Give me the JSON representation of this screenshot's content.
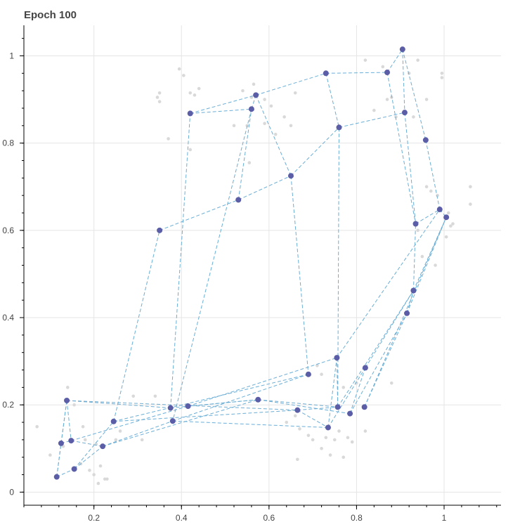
{
  "chart_data": {
    "type": "scatter",
    "title": "Epoch 100",
    "xlabel": "",
    "ylabel": "",
    "xlim": [
      0.04,
      1.13
    ],
    "ylim": [
      -0.03,
      1.07
    ],
    "grid": true,
    "x_ticks": [
      0.2,
      0.4,
      0.6,
      0.8,
      1.0
    ],
    "x_tick_labels": [
      "0.2",
      "0.4",
      "0.6",
      "0.8",
      "1"
    ],
    "y_ticks": [
      0,
      0.2,
      0.4,
      0.6,
      0.8,
      1.0
    ],
    "y_tick_labels": [
      "0",
      "0.2",
      "0.4",
      "0.6",
      "0.8",
      "1"
    ],
    "colors": {
      "nodes": "#5b5ea6",
      "edges": "#6aaed6",
      "background_points": "#d9d9d9"
    },
    "background_points": [
      [
        0.07,
        0.15
      ],
      [
        0.1,
        0.085
      ],
      [
        0.13,
        0.105
      ],
      [
        0.14,
        0.24
      ],
      [
        0.155,
        0.2
      ],
      [
        0.17,
        0.065
      ],
      [
        0.175,
        0.15
      ],
      [
        0.18,
        0.12
      ],
      [
        0.19,
        0.05
      ],
      [
        0.2,
        0.04
      ],
      [
        0.205,
        0.11
      ],
      [
        0.21,
        0.02
      ],
      [
        0.215,
        0.06
      ],
      [
        0.225,
        0.03
      ],
      [
        0.23,
        0.03
      ],
      [
        0.25,
        0.12
      ],
      [
        0.26,
        0.14
      ],
      [
        0.29,
        0.22
      ],
      [
        0.31,
        0.12
      ],
      [
        0.34,
        0.22
      ],
      [
        0.345,
        0.905
      ],
      [
        0.35,
        0.915
      ],
      [
        0.35,
        0.895
      ],
      [
        0.37,
        0.81
      ],
      [
        0.395,
        0.97
      ],
      [
        0.405,
        0.955
      ],
      [
        0.42,
        0.785
      ],
      [
        0.42,
        0.915
      ],
      [
        0.43,
        0.91
      ],
      [
        0.44,
        0.925
      ],
      [
        0.52,
        0.84
      ],
      [
        0.54,
        0.92
      ],
      [
        0.55,
        0.84
      ],
      [
        0.555,
        0.755
      ],
      [
        0.56,
        0.905
      ],
      [
        0.565,
        0.935
      ],
      [
        0.59,
        0.845
      ],
      [
        0.59,
        0.9
      ],
      [
        0.605,
        0.885
      ],
      [
        0.615,
        0.82
      ],
      [
        0.635,
        0.86
      ],
      [
        0.65,
        0.84
      ],
      [
        0.66,
        0.915
      ],
      [
        0.64,
        0.16
      ],
      [
        0.66,
        0.175
      ],
      [
        0.665,
        0.075
      ],
      [
        0.67,
        0.145
      ],
      [
        0.69,
        0.13
      ],
      [
        0.7,
        0.12
      ],
      [
        0.71,
        0.29
      ],
      [
        0.72,
        0.27
      ],
      [
        0.72,
        0.1
      ],
      [
        0.73,
        0.125
      ],
      [
        0.74,
        0.085
      ],
      [
        0.75,
        0.12
      ],
      [
        0.76,
        0.14
      ],
      [
        0.77,
        0.08
      ],
      [
        0.77,
        0.24
      ],
      [
        0.78,
        0.125
      ],
      [
        0.79,
        0.115
      ],
      [
        0.8,
        0.25
      ],
      [
        0.82,
        0.99
      ],
      [
        0.82,
        0.14
      ],
      [
        0.84,
        0.875
      ],
      [
        0.86,
        0.975
      ],
      [
        0.87,
        0.9
      ],
      [
        0.88,
        0.905
      ],
      [
        0.88,
        0.25
      ],
      [
        0.89,
        0.86
      ],
      [
        0.92,
        0.96
      ],
      [
        0.93,
        0.86
      ],
      [
        0.94,
        0.99
      ],
      [
        0.94,
        0.6
      ],
      [
        0.95,
        0.54
      ],
      [
        0.96,
        0.7
      ],
      [
        0.96,
        0.9
      ],
      [
        0.97,
        0.69
      ],
      [
        0.98,
        0.52
      ],
      [
        0.985,
        0.68
      ],
      [
        0.995,
        0.96
      ],
      [
        0.995,
        0.95
      ],
      [
        1.005,
        0.585
      ],
      [
        1.01,
        0.64
      ],
      [
        1.015,
        0.61
      ],
      [
        1.02,
        0.615
      ],
      [
        1.06,
        0.66
      ],
      [
        1.06,
        0.7
      ]
    ],
    "nodes": [
      [
        0.115,
        0.035
      ],
      [
        0.125,
        0.112
      ],
      [
        0.138,
        0.21
      ],
      [
        0.148,
        0.118
      ],
      [
        0.155,
        0.053
      ],
      [
        0.22,
        0.105
      ],
      [
        0.245,
        0.162
      ],
      [
        0.35,
        0.6
      ],
      [
        0.375,
        0.193
      ],
      [
        0.38,
        0.163
      ],
      [
        0.415,
        0.197
      ],
      [
        0.42,
        0.868
      ],
      [
        0.53,
        0.67
      ],
      [
        0.56,
        0.878
      ],
      [
        0.57,
        0.91
      ],
      [
        0.575,
        0.212
      ],
      [
        0.65,
        0.725
      ],
      [
        0.665,
        0.188
      ],
      [
        0.69,
        0.27
      ],
      [
        0.73,
        0.96
      ],
      [
        0.735,
        0.148
      ],
      [
        0.755,
        0.308
      ],
      [
        0.757,
        0.195
      ],
      [
        0.76,
        0.836
      ],
      [
        0.785,
        0.18
      ],
      [
        0.818,
        0.195
      ],
      [
        0.82,
        0.285
      ],
      [
        0.87,
        0.962
      ],
      [
        0.905,
        1.015
      ],
      [
        0.91,
        0.87
      ],
      [
        0.915,
        0.41
      ],
      [
        0.93,
        0.462
      ],
      [
        0.935,
        0.615
      ],
      [
        0.958,
        0.807
      ],
      [
        0.99,
        0.648
      ],
      [
        1.005,
        0.63
      ]
    ],
    "edges": [
      [
        0,
        1
      ],
      [
        0,
        2
      ],
      [
        0,
        4
      ],
      [
        1,
        3
      ],
      [
        2,
        3
      ],
      [
        1,
        2
      ],
      [
        2,
        8
      ],
      [
        2,
        17
      ],
      [
        3,
        5
      ],
      [
        3,
        10
      ],
      [
        4,
        5
      ],
      [
        4,
        6
      ],
      [
        5,
        9
      ],
      [
        5,
        15
      ],
      [
        6,
        7
      ],
      [
        6,
        18
      ],
      [
        6,
        17
      ],
      [
        7,
        12
      ],
      [
        8,
        11
      ],
      [
        8,
        15
      ],
      [
        9,
        20
      ],
      [
        9,
        18
      ],
      [
        10,
        21
      ],
      [
        10,
        15
      ],
      [
        11,
        13
      ],
      [
        11,
        14
      ],
      [
        12,
        13
      ],
      [
        12,
        16
      ],
      [
        13,
        14
      ],
      [
        13,
        9
      ],
      [
        14,
        19
      ],
      [
        14,
        16
      ],
      [
        15,
        22
      ],
      [
        15,
        24
      ],
      [
        16,
        18
      ],
      [
        16,
        23
      ],
      [
        17,
        22
      ],
      [
        17,
        20
      ],
      [
        19,
        27
      ],
      [
        19,
        23
      ],
      [
        20,
        26
      ],
      [
        20,
        21
      ],
      [
        21,
        22
      ],
      [
        21,
        34
      ],
      [
        22,
        23
      ],
      [
        22,
        31
      ],
      [
        23,
        29
      ],
      [
        24,
        26
      ],
      [
        24,
        30
      ],
      [
        25,
        30
      ],
      [
        25,
        35
      ],
      [
        26,
        31
      ],
      [
        27,
        28
      ],
      [
        27,
        32
      ],
      [
        28,
        29
      ],
      [
        28,
        33
      ],
      [
        29,
        32
      ],
      [
        30,
        31
      ],
      [
        30,
        35
      ],
      [
        31,
        32
      ],
      [
        31,
        35
      ],
      [
        32,
        34
      ],
      [
        33,
        34
      ],
      [
        34,
        35
      ]
    ]
  }
}
